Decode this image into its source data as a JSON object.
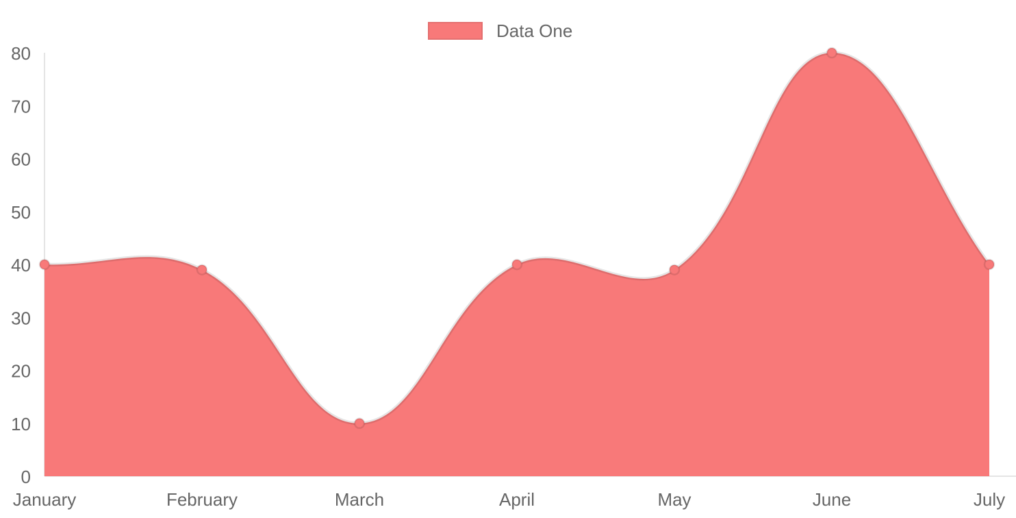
{
  "chart_data": {
    "type": "area",
    "title": "",
    "categories": [
      "January",
      "February",
      "March",
      "April",
      "May",
      "June",
      "July"
    ],
    "series": [
      {
        "name": "Data One",
        "values": [
          40,
          39,
          10,
          40,
          39,
          80,
          40
        ]
      }
    ],
    "xlabel": "",
    "ylabel": "",
    "ylim": [
      0,
      80
    ],
    "y_ticks": [
      0,
      10,
      20,
      30,
      40,
      50,
      60,
      70,
      80
    ],
    "grid": false,
    "legend_position": "top",
    "line_tension": 0.4,
    "colors": {
      "fill": "#f87979",
      "line": "rgba(0,0,0,0.1)",
      "point_fill": "#f87979",
      "point_border": "rgba(0,0,0,0.1)",
      "axis_line": "rgba(0,0,0,0.1)",
      "text": "#666666"
    }
  }
}
